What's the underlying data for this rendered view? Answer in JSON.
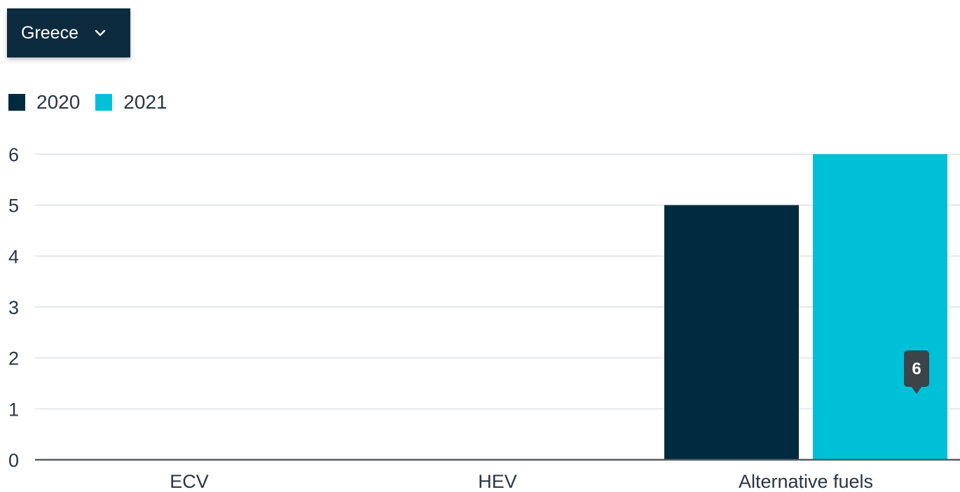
{
  "filter": {
    "selected": "Greece",
    "icon": "chevron-down-icon"
  },
  "colors": {
    "series_2020": "#002a3e",
    "series_2021": "#00c0d8",
    "grid": "#e4e8eb",
    "axis": "#555c63",
    "tooltip": "#3c4349"
  },
  "chart_data": {
    "type": "bar",
    "categories": [
      "ECV",
      "HEV",
      "Alternative fuels"
    ],
    "series": [
      {
        "name": "2020",
        "values": [
          0,
          0,
          5
        ]
      },
      {
        "name": "2021",
        "values": [
          0,
          0,
          6
        ]
      }
    ],
    "ylim": [
      0,
      6
    ],
    "yticks": [
      "0",
      "1",
      "2",
      "3",
      "4",
      "5",
      "6"
    ],
    "grid": true,
    "legend": "top-left",
    "tooltip": {
      "category": "Alternative fuels",
      "series": "2021",
      "value": "6"
    }
  }
}
